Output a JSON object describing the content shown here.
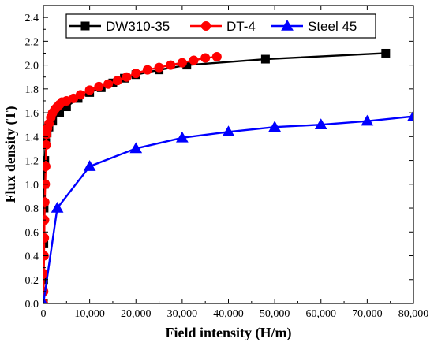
{
  "chart_data": {
    "type": "line",
    "title": "",
    "xlabel": "Field intensity (H/m)",
    "ylabel": "Flux density (T)",
    "xlim": [
      0,
      80000
    ],
    "ylim": [
      0,
      2.5
    ],
    "x_ticks": [
      0,
      10000,
      20000,
      30000,
      40000,
      50000,
      60000,
      70000,
      80000
    ],
    "x_tick_labels": [
      "0",
      "10,000",
      "20,000",
      "30,000",
      "40,000",
      "50,000",
      "60,000",
      "70,000",
      "80,000"
    ],
    "y_ticks": [
      0,
      0.2,
      0.4,
      0.6,
      0.8,
      1.0,
      1.2,
      1.4,
      1.6,
      1.8,
      2.0,
      2.2,
      2.4
    ],
    "y_tick_labels": [
      "0.0",
      "0.2",
      "0.4",
      "0.6",
      "0.8",
      "1.0",
      "1.2",
      "1.4",
      "1.6",
      "1.8",
      "2.0",
      "2.2",
      "2.4"
    ],
    "grid": false,
    "legend_position": "top",
    "series": [
      {
        "name": "DW310-35",
        "color": "#000000",
        "marker": "square",
        "x": [
          0,
          50,
          100,
          150,
          200,
          300,
          500,
          800,
          1200,
          2000,
          3500,
          5000,
          7500,
          10000,
          12500,
          15000,
          17500,
          20000,
          25000,
          31000,
          48000,
          74000
        ],
        "y": [
          0,
          0.2,
          0.5,
          0.8,
          1.0,
          1.2,
          1.35,
          1.43,
          1.48,
          1.53,
          1.6,
          1.65,
          1.72,
          1.77,
          1.81,
          1.85,
          1.89,
          1.92,
          1.96,
          2.0,
          2.05,
          2.1
        ]
      },
      {
        "name": "DT-4",
        "color": "#ff0000",
        "marker": "circle",
        "x": [
          0,
          50,
          100,
          150,
          200,
          250,
          300,
          400,
          500,
          600,
          700,
          900,
          1200,
          1600,
          2000,
          2500,
          3000,
          3500,
          4000,
          5000,
          6500,
          8000,
          10000,
          12000,
          14000,
          16000,
          18000,
          20000,
          22500,
          25000,
          27500,
          30000,
          32500,
          35000,
          37500
        ],
        "y": [
          0,
          0.1,
          0.25,
          0.4,
          0.55,
          0.7,
          0.85,
          1.0,
          1.15,
          1.33,
          1.42,
          1.47,
          1.51,
          1.56,
          1.6,
          1.63,
          1.65,
          1.67,
          1.69,
          1.7,
          1.72,
          1.75,
          1.79,
          1.82,
          1.84,
          1.87,
          1.9,
          1.93,
          1.96,
          1.98,
          2.0,
          2.02,
          2.04,
          2.06,
          2.07
        ]
      },
      {
        "name": "Steel 45",
        "color": "#0000ff",
        "marker": "triangle",
        "x": [
          0,
          3000,
          10000,
          20000,
          30000,
          40000,
          50000,
          60000,
          70000,
          80000
        ],
        "y": [
          0,
          0.8,
          1.15,
          1.3,
          1.39,
          1.44,
          1.48,
          1.5,
          1.53,
          1.57
        ]
      }
    ]
  }
}
